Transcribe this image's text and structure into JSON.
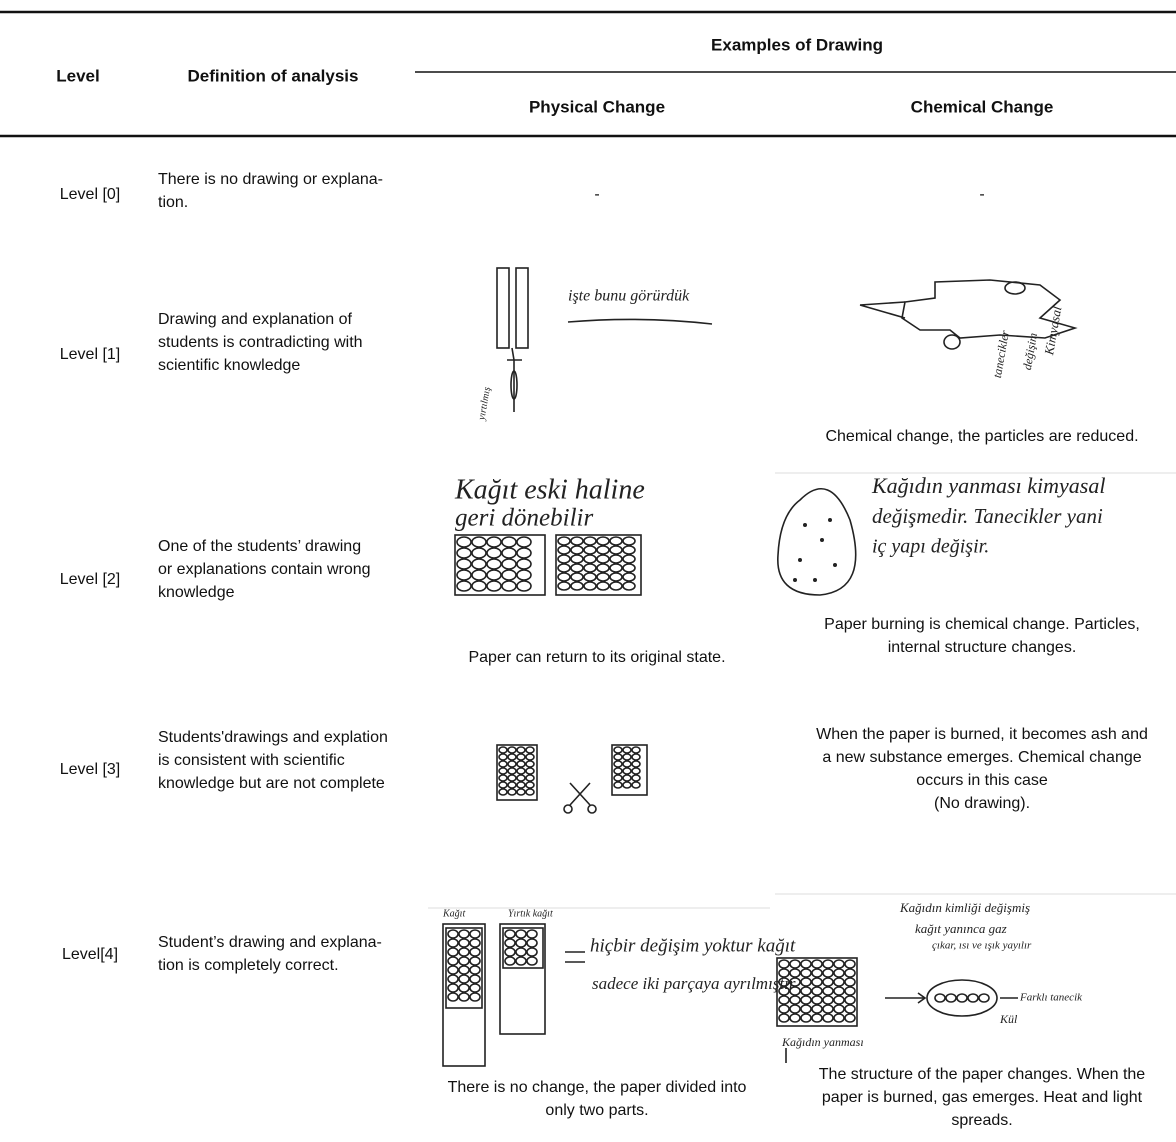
{
  "header": {
    "level": "Level",
    "definition": "Definition of analysis",
    "examples": "Examples of Drawing",
    "physical": "Physical Change",
    "chemical": "Chemical Change"
  },
  "rows": [
    {
      "level": "Level [0]",
      "definition": [
        "There is no drawing or explana-",
        "tion."
      ],
      "physical": {
        "caption": [
          "-"
        ]
      },
      "chemical": {
        "caption": [
          "-"
        ]
      }
    },
    {
      "level": "Level [1]",
      "definition": [
        "Drawing and explanation of",
        "students is contradicting with",
        "scientific knowledge"
      ],
      "physical": {
        "handwriting": [
          "işte bunu görürdük",
          "yırtılmış"
        ]
      },
      "chemical": {
        "handwriting": [
          "Kimyasal",
          "değişim",
          "tanecikler"
        ],
        "caption": [
          "Chemical change, the particles are reduced."
        ]
      }
    },
    {
      "level": "Level [2]",
      "definition": [
        "One of the students’ drawing",
        "or explanations contain wrong",
        "knowledge"
      ],
      "physical": {
        "handwriting": [
          "Kağıt eski haline",
          "geri dönebilir"
        ],
        "caption": [
          "Paper can return to its original state."
        ]
      },
      "chemical": {
        "handwriting": [
          "Kağıdın yanması kimyasal",
          "değişmedir. Tanecikler yani",
          "iç yapı değişir."
        ],
        "caption": [
          "Paper burning is chemical change. Particles,",
          "internal structure changes."
        ]
      }
    },
    {
      "level": "Level [3]",
      "definition": [
        "Students'drawings and explation",
        "is consistent with scientific",
        "knowledge but are not complete"
      ],
      "physical": {},
      "chemical": {
        "caption": [
          "When the paper is burned, it becomes ash and",
          "a new substance emerges. Chemical change",
          "occurs in this case",
          "(No drawing)."
        ]
      }
    },
    {
      "level": "Level[4]",
      "definition": [
        "Student’s drawing and explana-",
        "tion is completely correct."
      ],
      "physical": {
        "handwriting": [
          "Kağıt",
          "Yırtık kağıt",
          "hiçbir değişim yoktur kağıt",
          "sadece iki parçaya ayrılmıştır"
        ],
        "caption": [
          "There is no change, the paper divided into",
          "only two parts."
        ]
      },
      "chemical": {
        "handwriting": [
          "Kağıdın kimliği değişmiş",
          "kağıt yanınca gaz",
          "çıkar, ısı ve ışık yayılır",
          "Farklı tanecik",
          "Kül",
          "Kağıdın yanması"
        ],
        "caption": [
          "The structure of the paper changes. When the",
          "paper is burned, gas emerges. Heat and light",
          "spreads."
        ]
      }
    }
  ]
}
